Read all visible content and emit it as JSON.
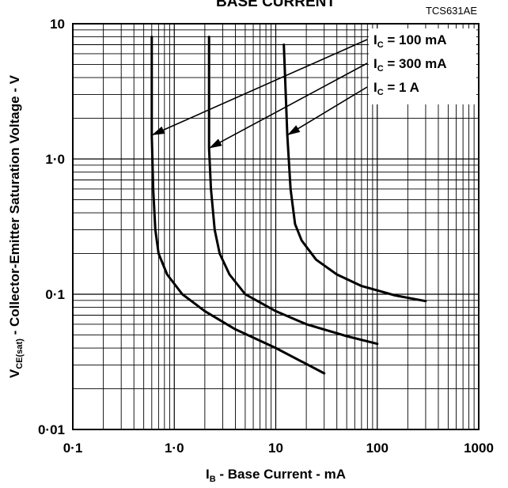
{
  "chart_data": {
    "type": "line",
    "title": "BASE CURRENT",
    "code": "TCS631AE",
    "xlabel": {
      "main": "I",
      "sub": "B",
      "rest": " - Base Current - mA"
    },
    "ylabel": {
      "main": "V",
      "sub": "CE(sat)",
      "rest": " - Collector-Emitter Saturation Voltage - V"
    },
    "x_scale": "log",
    "y_scale": "log",
    "xlim": [
      0.1,
      1000
    ],
    "ylim": [
      0.01,
      10
    ],
    "grid": true,
    "x_ticks": [
      {
        "value": 0.1,
        "label": "0·1"
      },
      {
        "value": 1,
        "label": "1·0"
      },
      {
        "value": 10,
        "label": "10"
      },
      {
        "value": 100,
        "label": "100"
      },
      {
        "value": 1000,
        "label": "1000"
      }
    ],
    "y_ticks": [
      {
        "value": 0.01,
        "label": "0·01"
      },
      {
        "value": 0.1,
        "label": "0·1"
      },
      {
        "value": 1,
        "label": "1·0"
      },
      {
        "value": 10,
        "label": "10"
      }
    ],
    "series": [
      {
        "label_main": "I",
        "label_sub": "C",
        "label_rest": " = 100 mA",
        "points": [
          [
            0.6,
            8
          ],
          [
            0.6,
            1.5
          ],
          [
            0.62,
            0.6
          ],
          [
            0.65,
            0.3
          ],
          [
            0.7,
            0.2
          ],
          [
            0.85,
            0.14
          ],
          [
            1.2,
            0.1
          ],
          [
            2,
            0.075
          ],
          [
            4,
            0.055
          ],
          [
            10,
            0.04
          ],
          [
            30,
            0.026
          ]
        ],
        "arrow_at": [
          0.6,
          1.5
        ]
      },
      {
        "label_main": "I",
        "label_sub": "C",
        "label_rest": " = 300 mA",
        "points": [
          [
            2.2,
            8
          ],
          [
            2.2,
            1.2
          ],
          [
            2.3,
            0.6
          ],
          [
            2.5,
            0.3
          ],
          [
            2.8,
            0.2
          ],
          [
            3.5,
            0.14
          ],
          [
            5,
            0.1
          ],
          [
            10,
            0.075
          ],
          [
            20,
            0.06
          ],
          [
            50,
            0.049
          ],
          [
            100,
            0.043
          ]
        ],
        "arrow_at": [
          2.2,
          1.2
        ]
      },
      {
        "label_main": "I",
        "label_sub": "C",
        "label_rest": " = 1 A",
        "points": [
          [
            12,
            7
          ],
          [
            13,
            1.5
          ],
          [
            14,
            0.6
          ],
          [
            15.5,
            0.33
          ],
          [
            18,
            0.25
          ],
          [
            25,
            0.18
          ],
          [
            40,
            0.14
          ],
          [
            70,
            0.115
          ],
          [
            150,
            0.098
          ],
          [
            300,
            0.089
          ]
        ],
        "arrow_at": [
          13,
          1.5
        ]
      }
    ],
    "legend_position": "top-right"
  }
}
